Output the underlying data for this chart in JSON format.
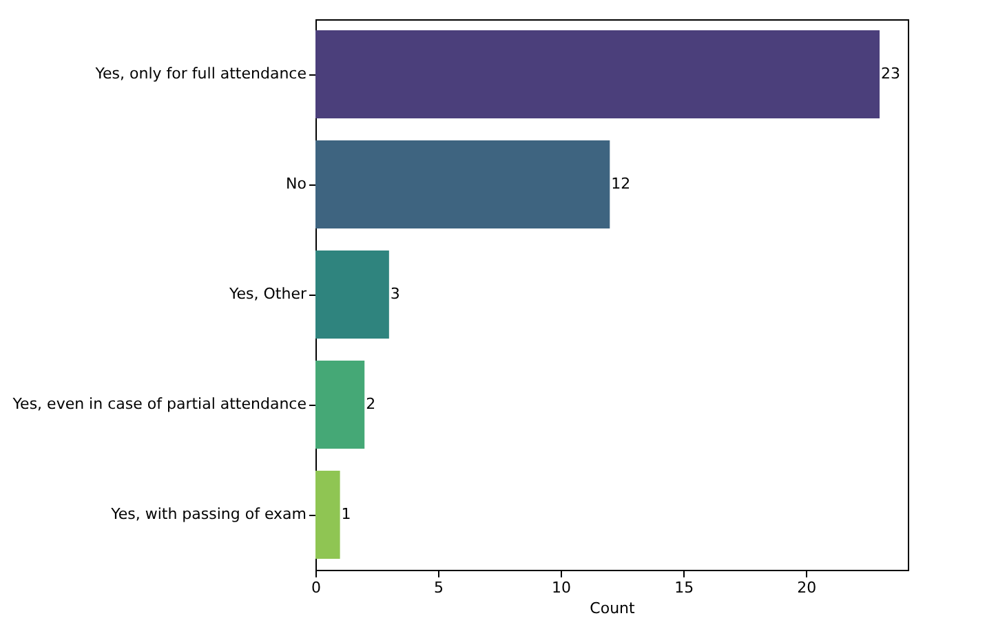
{
  "chart_data": {
    "type": "bar",
    "orientation": "horizontal",
    "xlabel": "Count",
    "categories": [
      "Yes, only for full attendance",
      "No",
      "Yes, Other",
      "Yes, even in case of partial attendance",
      "Yes, with passing of exam"
    ],
    "values": [
      23,
      12,
      3,
      2,
      1
    ],
    "colors": [
      "#4b3f7b",
      "#3e6480",
      "#2f847e",
      "#45a876",
      "#8fc553"
    ],
    "xlim": [
      0,
      24.15
    ],
    "xticks": [
      0,
      5,
      10,
      15,
      20
    ],
    "data_labels": true
  }
}
